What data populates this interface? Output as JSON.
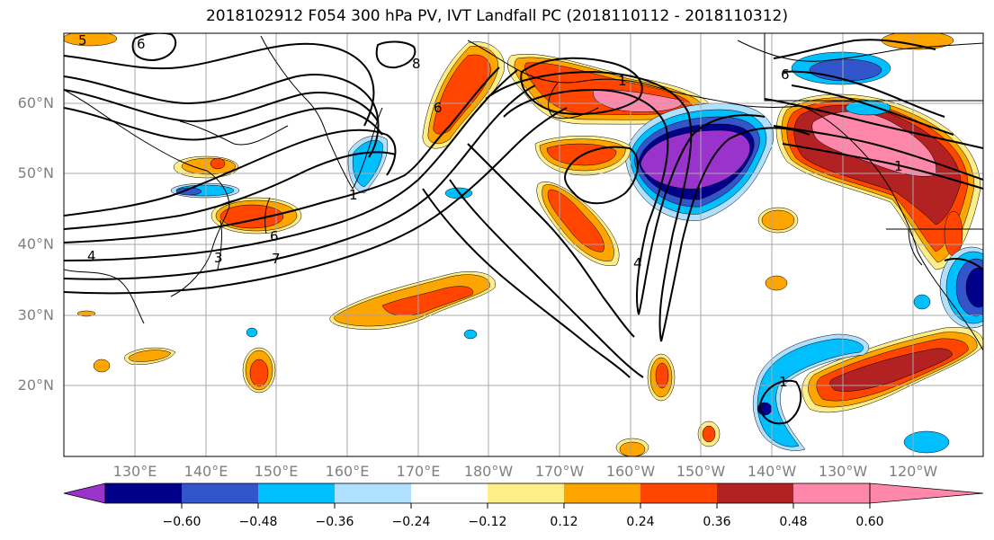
{
  "title": "2018102912 F054 300 hPa PV, IVT Landfall PC (2018110112 - 2018110312)",
  "lat_labels": [
    "60°N",
    "50°N",
    "40°N",
    "30°N",
    "20°N"
  ],
  "lon_labels": [
    "130°E",
    "140°E",
    "150°E",
    "160°E",
    "170°E",
    "180°W",
    "170°W",
    "160°W",
    "150°W",
    "140°W",
    "130°W",
    "120°W"
  ],
  "colorbar": {
    "tick_labels": [
      "−0.60",
      "−0.48",
      "−0.36",
      "−0.24",
      "−0.12",
      "0.12",
      "0.24",
      "0.36",
      "0.48",
      "0.60"
    ],
    "colors": [
      "#9933cc",
      "#00008b",
      "#3355cc",
      "#00bfff",
      "#b0e0ff",
      "#ffffff",
      "#ffee88",
      "#ffa500",
      "#ff4500",
      "#b22222",
      "#ff88aa"
    ]
  },
  "contour_labels": [
    "5",
    "6",
    "8",
    "6",
    "1",
    "6",
    "3",
    "7",
    "4",
    "4",
    "6",
    "1",
    "1",
    "1"
  ],
  "fill_colors": {
    "purple": "#9933cc",
    "navy": "#00008b",
    "blue": "#3355cc",
    "cyan": "#00bfff",
    "lightblue": "#b0e0ff",
    "yellow": "#ffee88",
    "orange": "#ffa500",
    "redorange": "#ff4500",
    "darkred": "#b22222",
    "pink": "#ff88aa"
  }
}
